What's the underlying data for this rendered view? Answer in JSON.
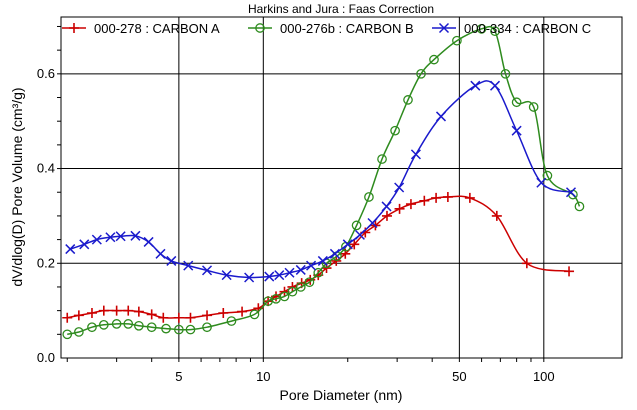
{
  "chart_data": {
    "type": "line",
    "title": "Harkins and Jura : Faas Correction",
    "xlabel": "Pore Diameter (nm)",
    "ylabel": "dV/dlog(D) Pore Volume (cm³/g)",
    "xscale": "log",
    "xlim": [
      1.9,
      190
    ],
    "ylim": [
      0.0,
      0.72
    ],
    "xticks": [
      5,
      10,
      50,
      100
    ],
    "xtick_labels": [
      "5",
      "10",
      "50",
      "100"
    ],
    "yticks": [
      0.0,
      0.2,
      0.4,
      0.6
    ],
    "ytick_labels": [
      "0.0",
      "0.2",
      "0.4",
      "0.6"
    ],
    "grid": true,
    "legend_position": "top",
    "series": [
      {
        "name": "000-278 : CARBON A",
        "color": "#cc0000",
        "marker": "plus",
        "x": [
          2.0,
          2.2,
          2.45,
          2.7,
          3.0,
          3.3,
          3.6,
          4.0,
          4.4,
          5.0,
          5.5,
          6.3,
          7.2,
          8.4,
          9.6,
          10.4,
          11.1,
          11.9,
          12.7,
          13.7,
          14.7,
          15.7,
          16.8,
          18.2,
          19.6,
          21.1,
          23.1,
          25.1,
          27.6,
          30.6,
          33.6,
          37.5,
          41.3,
          45.5,
          54.5,
          68.0,
          87.0,
          123.0
        ],
        "values": [
          0.085,
          0.09,
          0.095,
          0.1,
          0.1,
          0.1,
          0.098,
          0.092,
          0.085,
          0.085,
          0.085,
          0.09,
          0.095,
          0.098,
          0.105,
          0.12,
          0.13,
          0.14,
          0.15,
          0.158,
          0.165,
          0.175,
          0.19,
          0.205,
          0.22,
          0.24,
          0.265,
          0.28,
          0.3,
          0.315,
          0.325,
          0.332,
          0.338,
          0.34,
          0.338,
          0.3,
          0.2,
          0.183
        ]
      },
      {
        "name": "000-276b : CARBON B",
        "color": "#2e8b1e",
        "marker": "circle",
        "x": [
          2.0,
          2.2,
          2.45,
          2.7,
          3.0,
          3.3,
          3.6,
          4.0,
          4.5,
          5.0,
          5.5,
          6.3,
          7.7,
          9.3,
          10.4,
          11.1,
          11.9,
          12.7,
          13.6,
          14.6,
          15.7,
          16.8,
          18.3,
          19.7,
          21.5,
          23.8,
          26.5,
          29.5,
          32.8,
          36.5,
          40.6,
          49.0,
          60.0,
          67.0,
          73.0,
          80.0,
          92.0,
          103.0,
          127.0,
          134.0
        ],
        "values": [
          0.05,
          0.055,
          0.065,
          0.07,
          0.072,
          0.072,
          0.068,
          0.065,
          0.062,
          0.06,
          0.06,
          0.065,
          0.078,
          0.092,
          0.12,
          0.125,
          0.13,
          0.14,
          0.15,
          0.16,
          0.18,
          0.2,
          0.215,
          0.235,
          0.28,
          0.34,
          0.42,
          0.48,
          0.545,
          0.6,
          0.63,
          0.67,
          0.695,
          0.69,
          0.6,
          0.54,
          0.53,
          0.385,
          0.345,
          0.32
        ]
      },
      {
        "name": "000-334 : CARBON C",
        "color": "#1a1acc",
        "marker": "x",
        "x": [
          2.05,
          2.3,
          2.55,
          2.85,
          3.1,
          3.5,
          3.9,
          4.3,
          4.7,
          5.4,
          6.3,
          7.4,
          8.9,
          10.5,
          11.4,
          12.4,
          13.6,
          14.8,
          16.3,
          18.0,
          20.0,
          22.1,
          24.5,
          27.5,
          30.5,
          35.0,
          43.0,
          57.0,
          67.0,
          80.0,
          98.0,
          125.0
        ],
        "values": [
          0.23,
          0.24,
          0.25,
          0.255,
          0.257,
          0.258,
          0.245,
          0.22,
          0.205,
          0.195,
          0.185,
          0.175,
          0.17,
          0.172,
          0.175,
          0.18,
          0.186,
          0.195,
          0.205,
          0.22,
          0.24,
          0.26,
          0.285,
          0.32,
          0.36,
          0.43,
          0.51,
          0.575,
          0.575,
          0.48,
          0.37,
          0.35
        ]
      }
    ]
  }
}
